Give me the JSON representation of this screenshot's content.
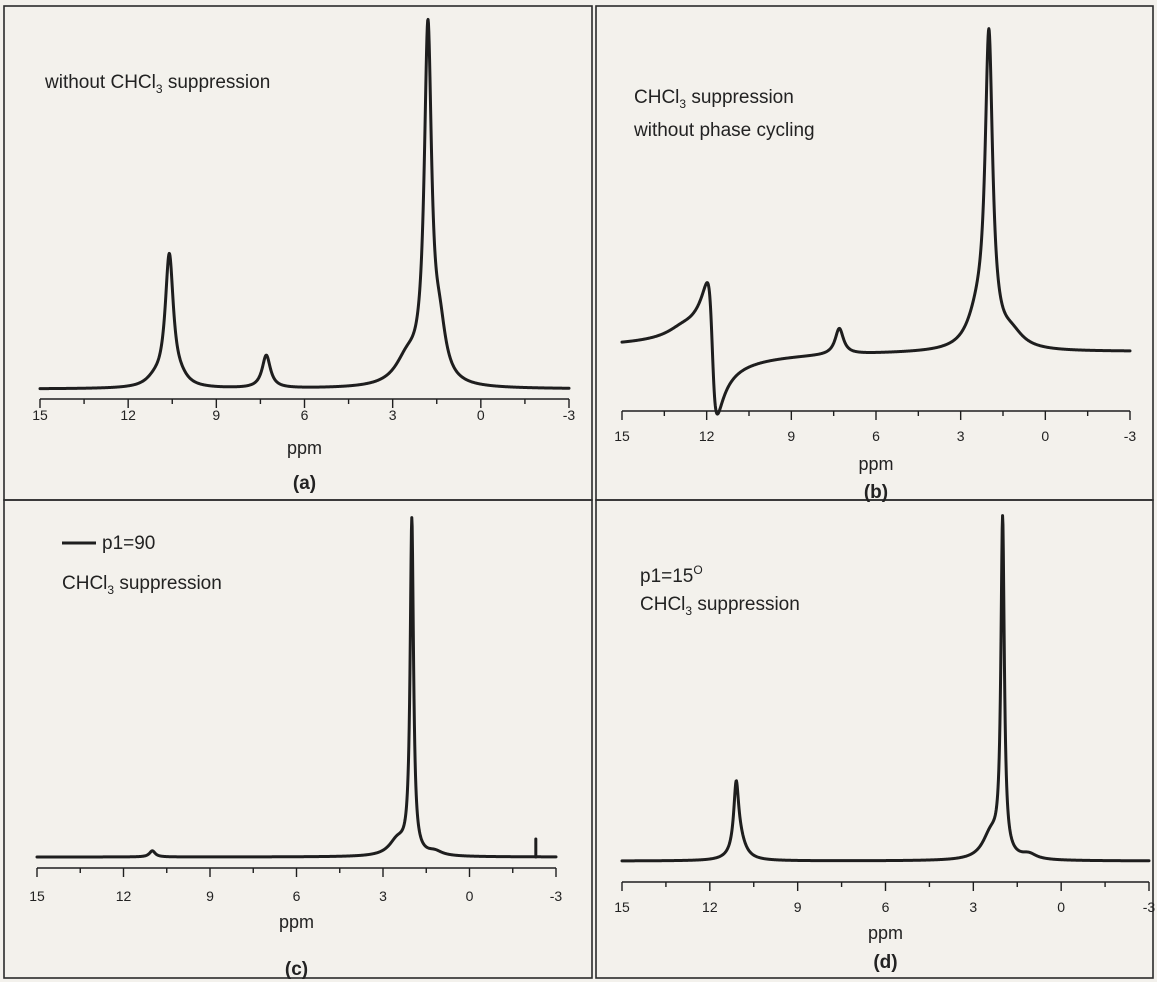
{
  "chart_data": [
    {
      "id": "a",
      "type": "line",
      "panel_label": "(a)",
      "xlabel": "ppm",
      "x_reversed": true,
      "xlim": [
        15,
        -3
      ],
      "x_ticks": [
        "15",
        "12",
        "9",
        "6",
        "3",
        "0",
        "-3"
      ],
      "annotation": [
        {
          "text": "without CHCl"
        },
        {
          "text": "3",
          "sub": true
        },
        {
          "text": " suppression"
        }
      ],
      "baseline": 0.0,
      "peaks": [
        {
          "ppm": 10.6,
          "height": 1.0,
          "width": 0.17
        },
        {
          "ppm": 11.1,
          "height": 0.05,
          "width": 0.35
        },
        {
          "ppm": 10.2,
          "height": 0.04,
          "width": 0.3
        },
        {
          "ppm": 7.3,
          "height": 0.25,
          "width": 0.17
        },
        {
          "ppm": 1.8,
          "height": 2.65,
          "width": 0.15
        },
        {
          "ppm": 2.5,
          "height": 0.2,
          "width": 0.5
        },
        {
          "ppm": 1.4,
          "height": 0.35,
          "width": 0.25
        }
      ],
      "y_max": 2.75
    },
    {
      "id": "b",
      "type": "line",
      "panel_label": "(b)",
      "xlabel": "ppm",
      "x_reversed": true,
      "xlim": [
        15,
        -3
      ],
      "x_ticks": [
        "15",
        "12",
        "9",
        "6",
        "3",
        "0",
        "-3"
      ],
      "annotation_lines": [
        [
          {
            "text": "CHCl"
          },
          {
            "text": "3",
            "sub": true
          },
          {
            "text": " suppression"
          }
        ],
        [
          {
            "text": "without phase cycling"
          }
        ]
      ],
      "baseline": 0.0,
      "dispersive": {
        "ppm": 11.8,
        "amplitude": 0.55,
        "width": 0.18
      },
      "bump": {
        "ppm": 12.9,
        "height": 0.05,
        "width": 0.6
      },
      "peaks": [
        {
          "ppm": 7.3,
          "height": 0.22,
          "width": 0.18
        },
        {
          "ppm": 2.0,
          "height": 2.55,
          "width": 0.16
        },
        {
          "ppm": 2.4,
          "height": 0.25,
          "width": 0.45
        },
        {
          "ppm": 1.2,
          "height": 0.12,
          "width": 0.5
        }
      ],
      "y_max": 2.65,
      "y_min": -0.75
    },
    {
      "id": "c",
      "type": "line",
      "panel_label": "(c)",
      "xlabel": "ppm",
      "x_reversed": true,
      "xlim": [
        15,
        -3
      ],
      "x_ticks": [
        "15",
        "12",
        "9",
        "6",
        "3",
        "0",
        "-3"
      ],
      "legend": {
        "label": "p1=90",
        "placement": "top-left"
      },
      "annotation": [
        {
          "text": "CHCl"
        },
        {
          "text": "3",
          "sub": true
        },
        {
          "text": " suppression"
        }
      ],
      "baseline": 0.0,
      "peaks": [
        {
          "ppm": 11.0,
          "height": 0.06,
          "width": 0.12
        },
        {
          "ppm": 2.0,
          "height": 3.25,
          "width": 0.07
        },
        {
          "ppm": 2.5,
          "height": 0.15,
          "width": 0.35
        },
        {
          "ppm": 1.2,
          "height": 0.04,
          "width": 0.3
        }
      ],
      "spike": {
        "ppm": -2.3,
        "height": 0.08
      },
      "y_max": 3.3
    },
    {
      "id": "d",
      "type": "line",
      "panel_label": "(d)",
      "xlabel": "ppm",
      "x_reversed": true,
      "xlim": [
        15,
        -3
      ],
      "x_ticks": [
        "15",
        "12",
        "9",
        "6",
        "3",
        "0",
        "-3"
      ],
      "annotation_lines": [
        [
          {
            "text": "p1=15"
          },
          {
            "text": "O",
            "sup": true
          }
        ],
        [
          {
            "text": "CHCl"
          },
          {
            "text": "3",
            "sub": true
          },
          {
            "text": " suppression"
          }
        ]
      ],
      "baseline": 0.0,
      "peaks": [
        {
          "ppm": 11.1,
          "height": 0.62,
          "width": 0.1
        },
        {
          "ppm": 11.0,
          "height": 0.2,
          "width": 0.25
        },
        {
          "ppm": 2.0,
          "height": 3.3,
          "width": 0.07
        },
        {
          "ppm": 2.4,
          "height": 0.25,
          "width": 0.35
        },
        {
          "ppm": 1.1,
          "height": 0.05,
          "width": 0.3
        }
      ],
      "y_max": 3.35
    }
  ]
}
